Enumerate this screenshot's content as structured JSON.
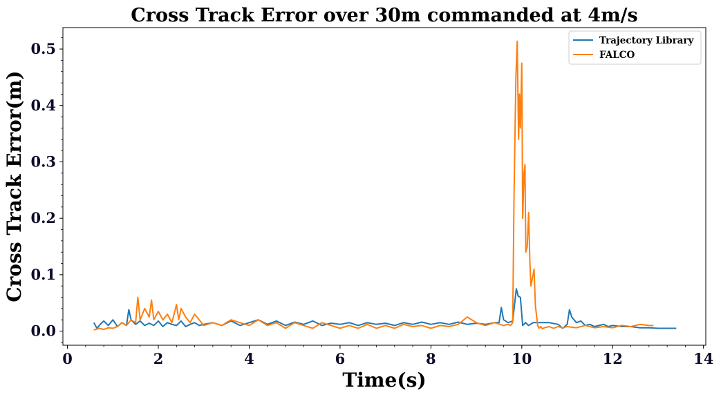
{
  "chart_data": {
    "type": "line",
    "title": "Cross Track Error over 30m commanded at 4m/s",
    "xlabel": "Time(s)",
    "ylabel": "Cross Track Error(m)",
    "xlim": [
      -0.1,
      14.05
    ],
    "ylim": [
      -0.025,
      0.538
    ],
    "x_ticks": [
      0,
      2,
      4,
      6,
      8,
      10,
      12,
      14
    ],
    "x_tick_labels": [
      "0",
      "2",
      "4",
      "6",
      "8",
      "10",
      "12",
      "14"
    ],
    "y_ticks": [
      0.0,
      0.1,
      0.2,
      0.3,
      0.4,
      0.5
    ],
    "y_tick_labels": [
      "0.0",
      "0.1",
      "0.2",
      "0.3",
      "0.4",
      "0.5"
    ],
    "grid": false,
    "legend_position": "top-right",
    "series": [
      {
        "name": "Trajectory Library",
        "color": "#1f77b4",
        "x": [
          0.58,
          0.65,
          0.72,
          0.8,
          0.9,
          1.0,
          1.1,
          1.2,
          1.3,
          1.35,
          1.4,
          1.5,
          1.6,
          1.7,
          1.8,
          1.9,
          2.0,
          2.1,
          2.2,
          2.3,
          2.4,
          2.5,
          2.6,
          2.7,
          2.8,
          2.9,
          3.0,
          3.2,
          3.4,
          3.6,
          3.8,
          4.0,
          4.2,
          4.4,
          4.6,
          4.8,
          5.0,
          5.2,
          5.4,
          5.6,
          5.8,
          6.0,
          6.2,
          6.4,
          6.6,
          6.8,
          7.0,
          7.2,
          7.4,
          7.6,
          7.8,
          8.0,
          8.2,
          8.4,
          8.6,
          8.8,
          9.0,
          9.2,
          9.4,
          9.5,
          9.55,
          9.6,
          9.7,
          9.8,
          9.88,
          9.92,
          9.97,
          10.02,
          10.08,
          10.15,
          10.25,
          10.35,
          10.45,
          10.6,
          10.8,
          10.9,
          11.0,
          11.05,
          11.1,
          11.2,
          11.3,
          11.4,
          11.5,
          11.6,
          11.7,
          11.8,
          11.9,
          12.0,
          12.2,
          12.4,
          12.6,
          12.8,
          13.0,
          13.2,
          13.4
        ],
        "y": [
          0.015,
          0.005,
          0.012,
          0.018,
          0.01,
          0.02,
          0.008,
          0.015,
          0.01,
          0.038,
          0.02,
          0.012,
          0.018,
          0.01,
          0.014,
          0.01,
          0.018,
          0.008,
          0.015,
          0.012,
          0.01,
          0.018,
          0.008,
          0.012,
          0.015,
          0.01,
          0.012,
          0.015,
          0.01,
          0.018,
          0.01,
          0.015,
          0.02,
          0.012,
          0.018,
          0.01,
          0.016,
          0.012,
          0.018,
          0.01,
          0.014,
          0.012,
          0.015,
          0.01,
          0.015,
          0.012,
          0.014,
          0.01,
          0.015,
          0.012,
          0.016,
          0.012,
          0.015,
          0.012,
          0.016,
          0.012,
          0.014,
          0.012,
          0.015,
          0.015,
          0.042,
          0.02,
          0.015,
          0.018,
          0.075,
          0.062,
          0.06,
          0.01,
          0.015,
          0.01,
          0.015,
          0.015,
          0.015,
          0.015,
          0.012,
          0.005,
          0.012,
          0.038,
          0.025,
          0.015,
          0.018,
          0.01,
          0.012,
          0.008,
          0.01,
          0.012,
          0.008,
          0.01,
          0.008,
          0.008,
          0.006,
          0.006,
          0.005,
          0.005,
          0.005
        ]
      },
      {
        "name": "FALCO",
        "color": "#ff7f0e",
        "x": [
          0.58,
          0.7,
          0.8,
          0.9,
          1.0,
          1.1,
          1.2,
          1.3,
          1.4,
          1.5,
          1.55,
          1.6,
          1.7,
          1.8,
          1.85,
          1.9,
          2.0,
          2.1,
          2.2,
          2.3,
          2.4,
          2.45,
          2.5,
          2.6,
          2.7,
          2.8,
          2.9,
          3.0,
          3.2,
          3.4,
          3.6,
          3.8,
          4.0,
          4.2,
          4.4,
          4.6,
          4.8,
          5.0,
          5.2,
          5.4,
          5.6,
          5.8,
          6.0,
          6.2,
          6.4,
          6.6,
          6.8,
          7.0,
          7.2,
          7.4,
          7.6,
          7.8,
          8.0,
          8.2,
          8.4,
          8.6,
          8.8,
          9.0,
          9.2,
          9.4,
          9.6,
          9.7,
          9.75,
          9.8,
          9.83,
          9.87,
          9.9,
          9.93,
          9.95,
          9.97,
          10.0,
          10.02,
          10.05,
          10.07,
          10.09,
          10.12,
          10.15,
          10.18,
          10.2,
          10.25,
          10.27,
          10.3,
          10.35,
          10.38,
          10.42,
          10.45,
          10.5,
          10.6,
          10.7,
          10.8,
          10.9,
          11.0,
          11.2,
          11.4,
          11.6,
          11.8,
          12.0,
          12.2,
          12.4,
          12.6,
          12.8,
          12.9
        ],
        "y": [
          0.002,
          0.005,
          0.003,
          0.006,
          0.005,
          0.008,
          0.015,
          0.01,
          0.02,
          0.015,
          0.06,
          0.02,
          0.04,
          0.025,
          0.055,
          0.02,
          0.035,
          0.02,
          0.03,
          0.015,
          0.047,
          0.02,
          0.04,
          0.025,
          0.015,
          0.03,
          0.02,
          0.01,
          0.015,
          0.01,
          0.02,
          0.015,
          0.01,
          0.02,
          0.01,
          0.015,
          0.005,
          0.015,
          0.01,
          0.005,
          0.015,
          0.01,
          0.005,
          0.01,
          0.005,
          0.012,
          0.005,
          0.01,
          0.005,
          0.012,
          0.008,
          0.01,
          0.005,
          0.01,
          0.008,
          0.012,
          0.025,
          0.015,
          0.01,
          0.015,
          0.01,
          0.012,
          0.01,
          0.015,
          0.24,
          0.45,
          0.514,
          0.34,
          0.42,
          0.36,
          0.475,
          0.2,
          0.28,
          0.295,
          0.14,
          0.15,
          0.21,
          0.12,
          0.08,
          0.1,
          0.11,
          0.045,
          0.01,
          0.005,
          0.008,
          0.004,
          0.006,
          0.008,
          0.005,
          0.008,
          0.006,
          0.008,
          0.006,
          0.01,
          0.006,
          0.008,
          0.006,
          0.01,
          0.008,
          0.012,
          0.01,
          0.01
        ]
      }
    ]
  }
}
